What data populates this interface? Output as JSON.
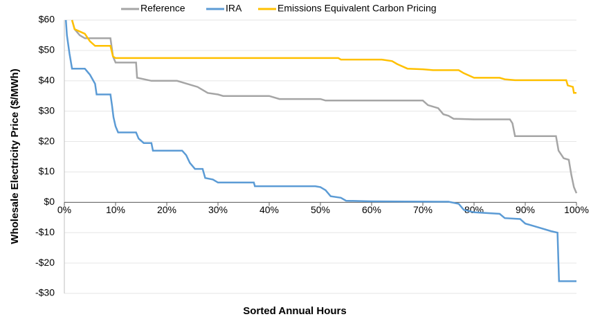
{
  "chart_data": {
    "type": "line",
    "xlabel": "Sorted Annual Hours",
    "ylabel": "Wholesale Electricity Price ($/MWh)",
    "xlim": [
      0,
      100
    ],
    "ylim": [
      -30,
      60
    ],
    "xticks": [
      {
        "value": 0,
        "label": "0%"
      },
      {
        "value": 10,
        "label": "10%"
      },
      {
        "value": 20,
        "label": "20%"
      },
      {
        "value": 30,
        "label": "30%"
      },
      {
        "value": 40,
        "label": "40%"
      },
      {
        "value": 50,
        "label": "50%"
      },
      {
        "value": 60,
        "label": "60%"
      },
      {
        "value": 70,
        "label": "70%"
      },
      {
        "value": 80,
        "label": "80%"
      },
      {
        "value": 90,
        "label": "90%"
      },
      {
        "value": 100,
        "label": "100%"
      }
    ],
    "yticks": [
      {
        "value": -30,
        "label": "-$30"
      },
      {
        "value": -20,
        "label": "-$20"
      },
      {
        "value": -10,
        "label": "-$10"
      },
      {
        "value": 0,
        "label": "$0"
      },
      {
        "value": 10,
        "label": "$10"
      },
      {
        "value": 20,
        "label": "$20"
      },
      {
        "value": 30,
        "label": "$30"
      },
      {
        "value": 40,
        "label": "$40"
      },
      {
        "value": 50,
        "label": "$50"
      },
      {
        "value": 60,
        "label": "$60"
      }
    ],
    "grid": true,
    "legend": "top",
    "series": [
      {
        "name": "Reference",
        "color": "#a5a5a5",
        "x": [
          1.5,
          2,
          3,
          4,
          9,
          9.5,
          10,
          14,
          14.2,
          17,
          22,
          24,
          26,
          28,
          30,
          31,
          40,
          42,
          50,
          51,
          70,
          71,
          73,
          74,
          75,
          76,
          80,
          87,
          87.5,
          88,
          96,
          96.5,
          97.5,
          98.5,
          99,
          99.5,
          100
        ],
        "values": [
          60,
          57,
          55,
          54,
          54,
          48,
          46,
          46,
          41,
          40,
          40,
          39,
          38,
          36,
          35.5,
          35,
          35,
          34,
          34,
          33.5,
          33.5,
          32,
          31,
          29,
          28.5,
          27.5,
          27.3,
          27.3,
          26,
          21.8,
          21.8,
          17,
          14.5,
          14,
          9,
          5,
          3
        ]
      },
      {
        "name": "IRA",
        "color": "#5b9bd5",
        "x": [
          0.3,
          0.5,
          1,
          1.5,
          4,
          5,
          6,
          6.3,
          9,
          9.3,
          9.6,
          10,
          10.5,
          14,
          14.5,
          15.5,
          17,
          17.3,
          23,
          23.8,
          24.5,
          25.5,
          27,
          27.5,
          29,
          30,
          37,
          37.2,
          49,
          50,
          51,
          52,
          54,
          55,
          60,
          75,
          77,
          78,
          80,
          85,
          86,
          89,
          90,
          93,
          95,
          96.3,
          96.6,
          100
        ],
        "values": [
          60,
          55,
          49,
          44,
          44,
          42,
          39,
          35.5,
          35.5,
          32,
          28,
          25,
          23,
          23,
          21,
          19.5,
          19.5,
          17,
          17,
          15.5,
          13,
          11,
          11,
          8,
          7.5,
          6.5,
          6.5,
          5.3,
          5.3,
          5,
          4,
          2,
          1.5,
          0.5,
          0.3,
          0.2,
          -0.5,
          -2.5,
          -3.3,
          -3.8,
          -5.2,
          -5.5,
          -7,
          -8.5,
          -9.5,
          -10,
          -26,
          -26
        ]
      },
      {
        "name": "Emissions Equivalent Carbon Pricing",
        "color": "#ffc000",
        "x": [
          1.5,
          2,
          4,
          5,
          6,
          9,
          9.5,
          10,
          53.5,
          54,
          62,
          64,
          65,
          67,
          70,
          72,
          77,
          78,
          80,
          85,
          86,
          88,
          98,
          98.3,
          99.3,
          99.5,
          100
        ],
        "values": [
          60,
          57,
          55.5,
          53,
          51.5,
          51.5,
          48,
          47.5,
          47.5,
          47,
          47,
          46.5,
          45.5,
          44,
          43.8,
          43.5,
          43.5,
          42.5,
          41,
          41,
          40.5,
          40.2,
          40.2,
          38.5,
          38,
          36,
          36
        ]
      }
    ]
  }
}
